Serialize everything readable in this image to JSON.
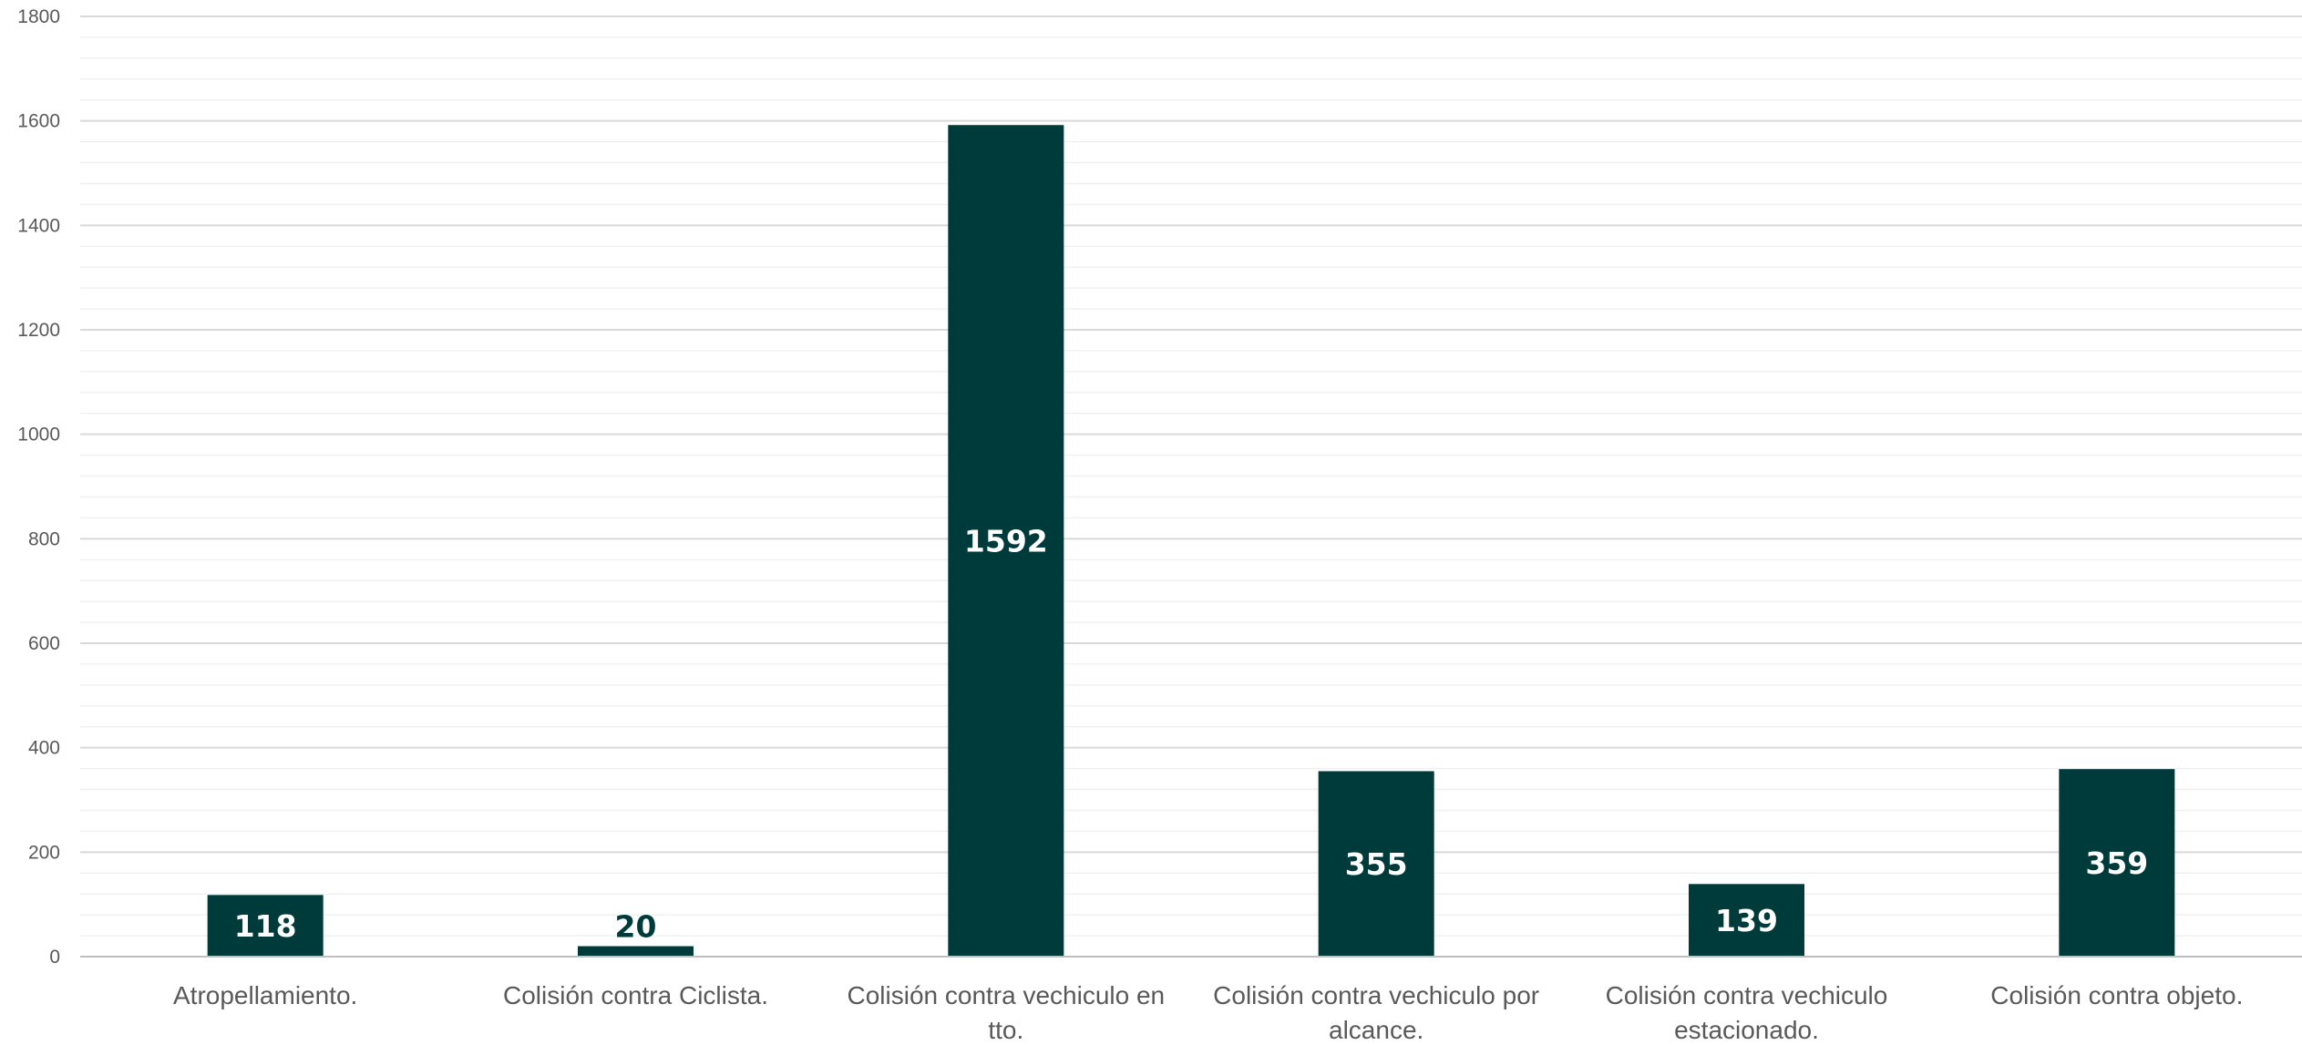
{
  "chart_data": {
    "type": "bar",
    "title": "",
    "xlabel": "",
    "ylabel": "",
    "categories": [
      [
        "Atropellamiento."
      ],
      [
        "Colisión contra Ciclista."
      ],
      [
        "Colisión contra vechiculo en",
        "tto."
      ],
      [
        "Colisión contra vechiculo por",
        "alcance."
      ],
      [
        "Colisión contra vechiculo",
        "estacionado."
      ],
      [
        "Colisión contra objeto."
      ]
    ],
    "values": [
      118,
      20,
      1592,
      355,
      139,
      359
    ],
    "data_labels": [
      "118",
      "20",
      "1592",
      "355",
      "139",
      "359"
    ],
    "ylim": [
      0,
      1800
    ],
    "y_ticks": [
      0,
      200,
      400,
      600,
      800,
      1000,
      1200,
      1400,
      1600,
      1800
    ],
    "y_minor_step": 40,
    "grid": true,
    "legend": "none",
    "bar_color": "#003b3b",
    "label_color_inside": "#ffffff",
    "label_color_outside": "#003b3b"
  }
}
